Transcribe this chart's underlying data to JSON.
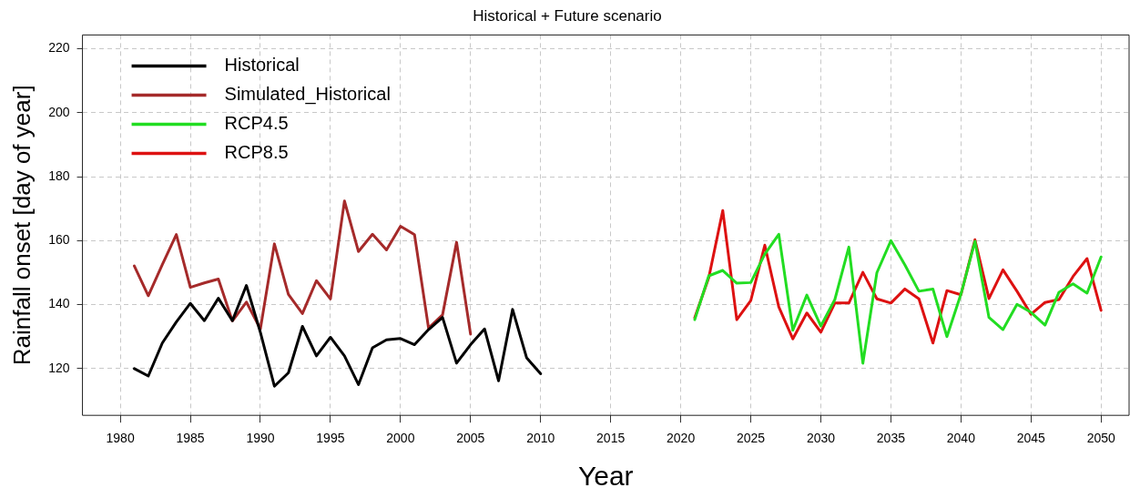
{
  "chart_data": {
    "type": "line",
    "title": "Historical + Future scenario",
    "xlabel": "Year",
    "ylabel": "Rainfall onset [day of year]",
    "xlim": [
      1977.3,
      2052
    ],
    "xticks": [
      1980,
      1985,
      1990,
      1995,
      2000,
      2005,
      2010,
      2015,
      2020,
      2025,
      2030,
      2035,
      2040,
      2045,
      2050
    ],
    "ylim": [
      105.4,
      224.3
    ],
    "yticks": [
      120,
      140,
      160,
      180,
      200,
      220
    ],
    "grid": true,
    "legend": "top left",
    "line_style": "solid",
    "marker": "none",
    "series": [
      {
        "name": "Historical",
        "color": "#000000",
        "x": [
          1981,
          1982,
          1983,
          1984,
          1985,
          1986,
          1987,
          1988,
          1989,
          1990,
          1991,
          1992,
          1993,
          1994,
          1995,
          1996,
          1997,
          1998,
          1999,
          2000,
          2001,
          2002,
          2003,
          2004,
          2005,
          2006,
          2007,
          2008,
          2009,
          2010
        ],
        "values": [
          120,
          117.7,
          128,
          134.6,
          140.4,
          135,
          142,
          135,
          146,
          131.3,
          114.5,
          118.7,
          133.2,
          124,
          129.8,
          124,
          115,
          126.5,
          129,
          129.4,
          127.5,
          132.2,
          136,
          121.7,
          127.5,
          132.4,
          116.2,
          138.5,
          123.4,
          118.4
        ]
      },
      {
        "name": "Simulated_Historical",
        "color": "#a52a2a",
        "x": [
          1981,
          1982,
          1983,
          1984,
          1985,
          1986,
          1987,
          1988,
          1989,
          1990,
          1991,
          1992,
          1993,
          1994,
          1995,
          1996,
          1997,
          1998,
          1999,
          2000,
          2001,
          2002,
          2003,
          2004,
          2005
        ],
        "values": [
          152.1,
          142.8,
          152.5,
          161.9,
          145.4,
          146.8,
          148,
          134.9,
          140.8,
          132.4,
          159,
          143.2,
          137.2,
          147.5,
          141.8,
          172.4,
          156.6,
          162,
          157.1,
          164.5,
          161.9,
          132.7,
          136.8,
          159.5,
          130.8
        ]
      },
      {
        "name": "RCP4.5",
        "color": "#22dd22",
        "x": [
          2021,
          2022,
          2023,
          2024,
          2025,
          2026,
          2027,
          2028,
          2029,
          2030,
          2031,
          2032,
          2033,
          2034,
          2035,
          2036,
          2037,
          2038,
          2039,
          2040,
          2041,
          2042,
          2043,
          2044,
          2045,
          2046,
          2047,
          2048,
          2049,
          2050
        ],
        "values": [
          135.3,
          149,
          150.7,
          146.7,
          146.9,
          155.8,
          162,
          132,
          143,
          133.3,
          141.6,
          158,
          121.7,
          150,
          160,
          152.4,
          144.2,
          144.9,
          130,
          143.3,
          159.8,
          136,
          132.2,
          140.1,
          137.6,
          133.6,
          143.9,
          146.5,
          143.6,
          154.9
        ]
      },
      {
        "name": "RCP8.5",
        "color": "#dd1111",
        "x": [
          2021,
          2022,
          2023,
          2024,
          2025,
          2026,
          2027,
          2028,
          2029,
          2030,
          2031,
          2032,
          2033,
          2034,
          2035,
          2036,
          2037,
          2038,
          2039,
          2040,
          2041,
          2042,
          2043,
          2044,
          2045,
          2046,
          2047,
          2048,
          2049,
          2050
        ],
        "values": [
          135.9,
          148.4,
          169.4,
          135.3,
          141.3,
          158.6,
          139.3,
          129.3,
          137.4,
          131.4,
          140.5,
          140.5,
          150.1,
          141.8,
          140.5,
          144.9,
          141.8,
          128,
          144.4,
          143.1,
          160.3,
          141.9,
          150.9,
          144.2,
          137,
          140.7,
          141.6,
          148.8,
          154.4,
          138.2
        ]
      }
    ]
  }
}
